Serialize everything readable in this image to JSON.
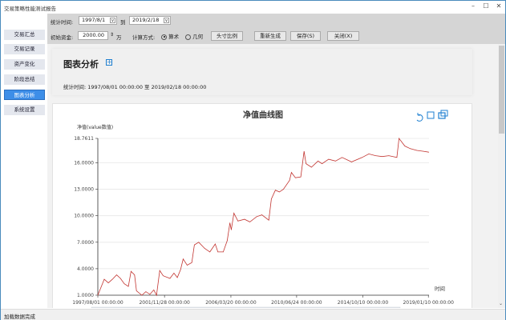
{
  "window": {
    "title": "交易策略性能测试报告",
    "minimize": "–",
    "maximize": "☐",
    "close": "✕"
  },
  "sidebar": {
    "items": [
      {
        "label": "交易汇总",
        "active": false
      },
      {
        "label": "交易记录",
        "active": false
      },
      {
        "label": "资产变化",
        "active": false
      },
      {
        "label": "阶段总结",
        "active": false
      },
      {
        "label": "图表分析",
        "active": true
      },
      {
        "label": "系统设置",
        "active": false
      }
    ]
  },
  "toolbar": {
    "period_label": "统计时间:",
    "start_date": "1997/8/1",
    "to_label": "到",
    "end_date": "2019/2/18",
    "capital_label": "初始资金:",
    "capital_value": "2000.00",
    "capital_unit": "万",
    "method_label": "计算方式:",
    "method_options": [
      "算术",
      "几何"
    ],
    "method_selected": "算术",
    "position_ratio": "头寸比例",
    "regenerate": "重新生成",
    "save": "保存(S)",
    "close": "关闭(X)"
  },
  "header": {
    "title": "图表分析",
    "expand_icon": "plus-square-icon",
    "period_text": "统计时间: 1997/08/01 00:00:00 至 2019/02/18 00:00:00"
  },
  "status": {
    "text": "加载数据完成"
  },
  "colors": {
    "accent": "#3d8ee8",
    "line": "#c23531",
    "toolbox": "#1e7fd0"
  },
  "chart_data": {
    "type": "line",
    "title": "净值曲线图",
    "ylabel": "净值(value数值)",
    "xlabel": "时间",
    "ylim": [
      1.0,
      18.7611
    ],
    "yticks": [
      "1.0000",
      "4.0000",
      "7.0000",
      "10.0000",
      "13.0000",
      "16.0000",
      "18.7611"
    ],
    "xlim": [
      "1997-08-01",
      "2019-01-25"
    ],
    "xticks": [
      "1997/08/01 00:00:00",
      "2001/11/28 00:00:00",
      "2006/03/20 00:00:00",
      "2010/06/24 00:00:00",
      "2014/10/10 00:00:00",
      "2019/01/10 00:00:00"
    ],
    "grid": true,
    "toolbox": [
      "restore-icon",
      "data-zoom-icon",
      "save-image-icon"
    ],
    "x": [
      "1997-08-01",
      "1997-12-31",
      "1998-04-07",
      "1998-07-13",
      "1998-10-19",
      "1999-01-19",
      "1999-04-20",
      "1999-07-26",
      "1999-09-27",
      "1999-12-19",
      "2000-02-02",
      "2000-06-10",
      "2000-09-12",
      "2000-12-16",
      "2001-03-20",
      "2001-05-22",
      "2001-08-07",
      "2001-10-27",
      "2002-04-06",
      "2002-07-09",
      "2002-09-27",
      "2002-12-13",
      "2003-02-13",
      "2003-05-19",
      "2003-09-05",
      "2003-11-06",
      "2004-02-16",
      "2004-07-05",
      "2004-11-06",
      "2005-03-14",
      "2005-05-15",
      "2005-09-20",
      "2005-12-24",
      "2006-02-24",
      "2006-03-29",
      "2006-05-30",
      "2006-09-02",
      "2007-02-06",
      "2007-06-13",
      "2007-11-20",
      "2008-03-24",
      "2008-09-02",
      "2008-11-02",
      "2009-02-06",
      "2009-05-12",
      "2009-08-15",
      "2010-01-08",
      "2010-02-21",
      "2010-05-27",
      "2010-10-01",
      "2010-12-18",
      "2011-02-02",
      "2011-06-10",
      "2011-11-13",
      "2012-02-17",
      "2012-07-22",
      "2013-01-01",
      "2013-06-06",
      "2014-01-15",
      "2014-09-24",
      "2015-02-28",
      "2015-08-08",
      "2016-01-12",
      "2016-06-18",
      "2016-12-24",
      "2017-02-14",
      "2017-07-01",
      "2017-11-06",
      "2018-04-12",
      "2018-09-16",
      "2019-01-20"
    ],
    "values": [
      1.0,
      2.8,
      2.4,
      2.8,
      3.3,
      2.9,
      2.3,
      2.0,
      3.7,
      3.3,
      1.5,
      1.0,
      1.4,
      1.1,
      1.6,
      1.0,
      3.8,
      3.2,
      2.9,
      3.5,
      3.0,
      3.9,
      5.1,
      4.4,
      4.7,
      6.7,
      7.0,
      6.3,
      5.9,
      6.8,
      5.9,
      5.9,
      7.2,
      9.2,
      8.4,
      10.3,
      9.4,
      9.6,
      9.3,
      9.9,
      10.1,
      9.5,
      11.9,
      12.9,
      12.7,
      13.0,
      14.0,
      14.9,
      14.3,
      14.4,
      17.3,
      15.9,
      15.5,
      16.2,
      15.9,
      16.4,
      16.2,
      16.6,
      16.1,
      16.6,
      17.0,
      16.8,
      16.7,
      16.8,
      16.6,
      18.7611,
      17.9,
      17.6,
      17.4,
      17.3,
      17.2
    ]
  }
}
